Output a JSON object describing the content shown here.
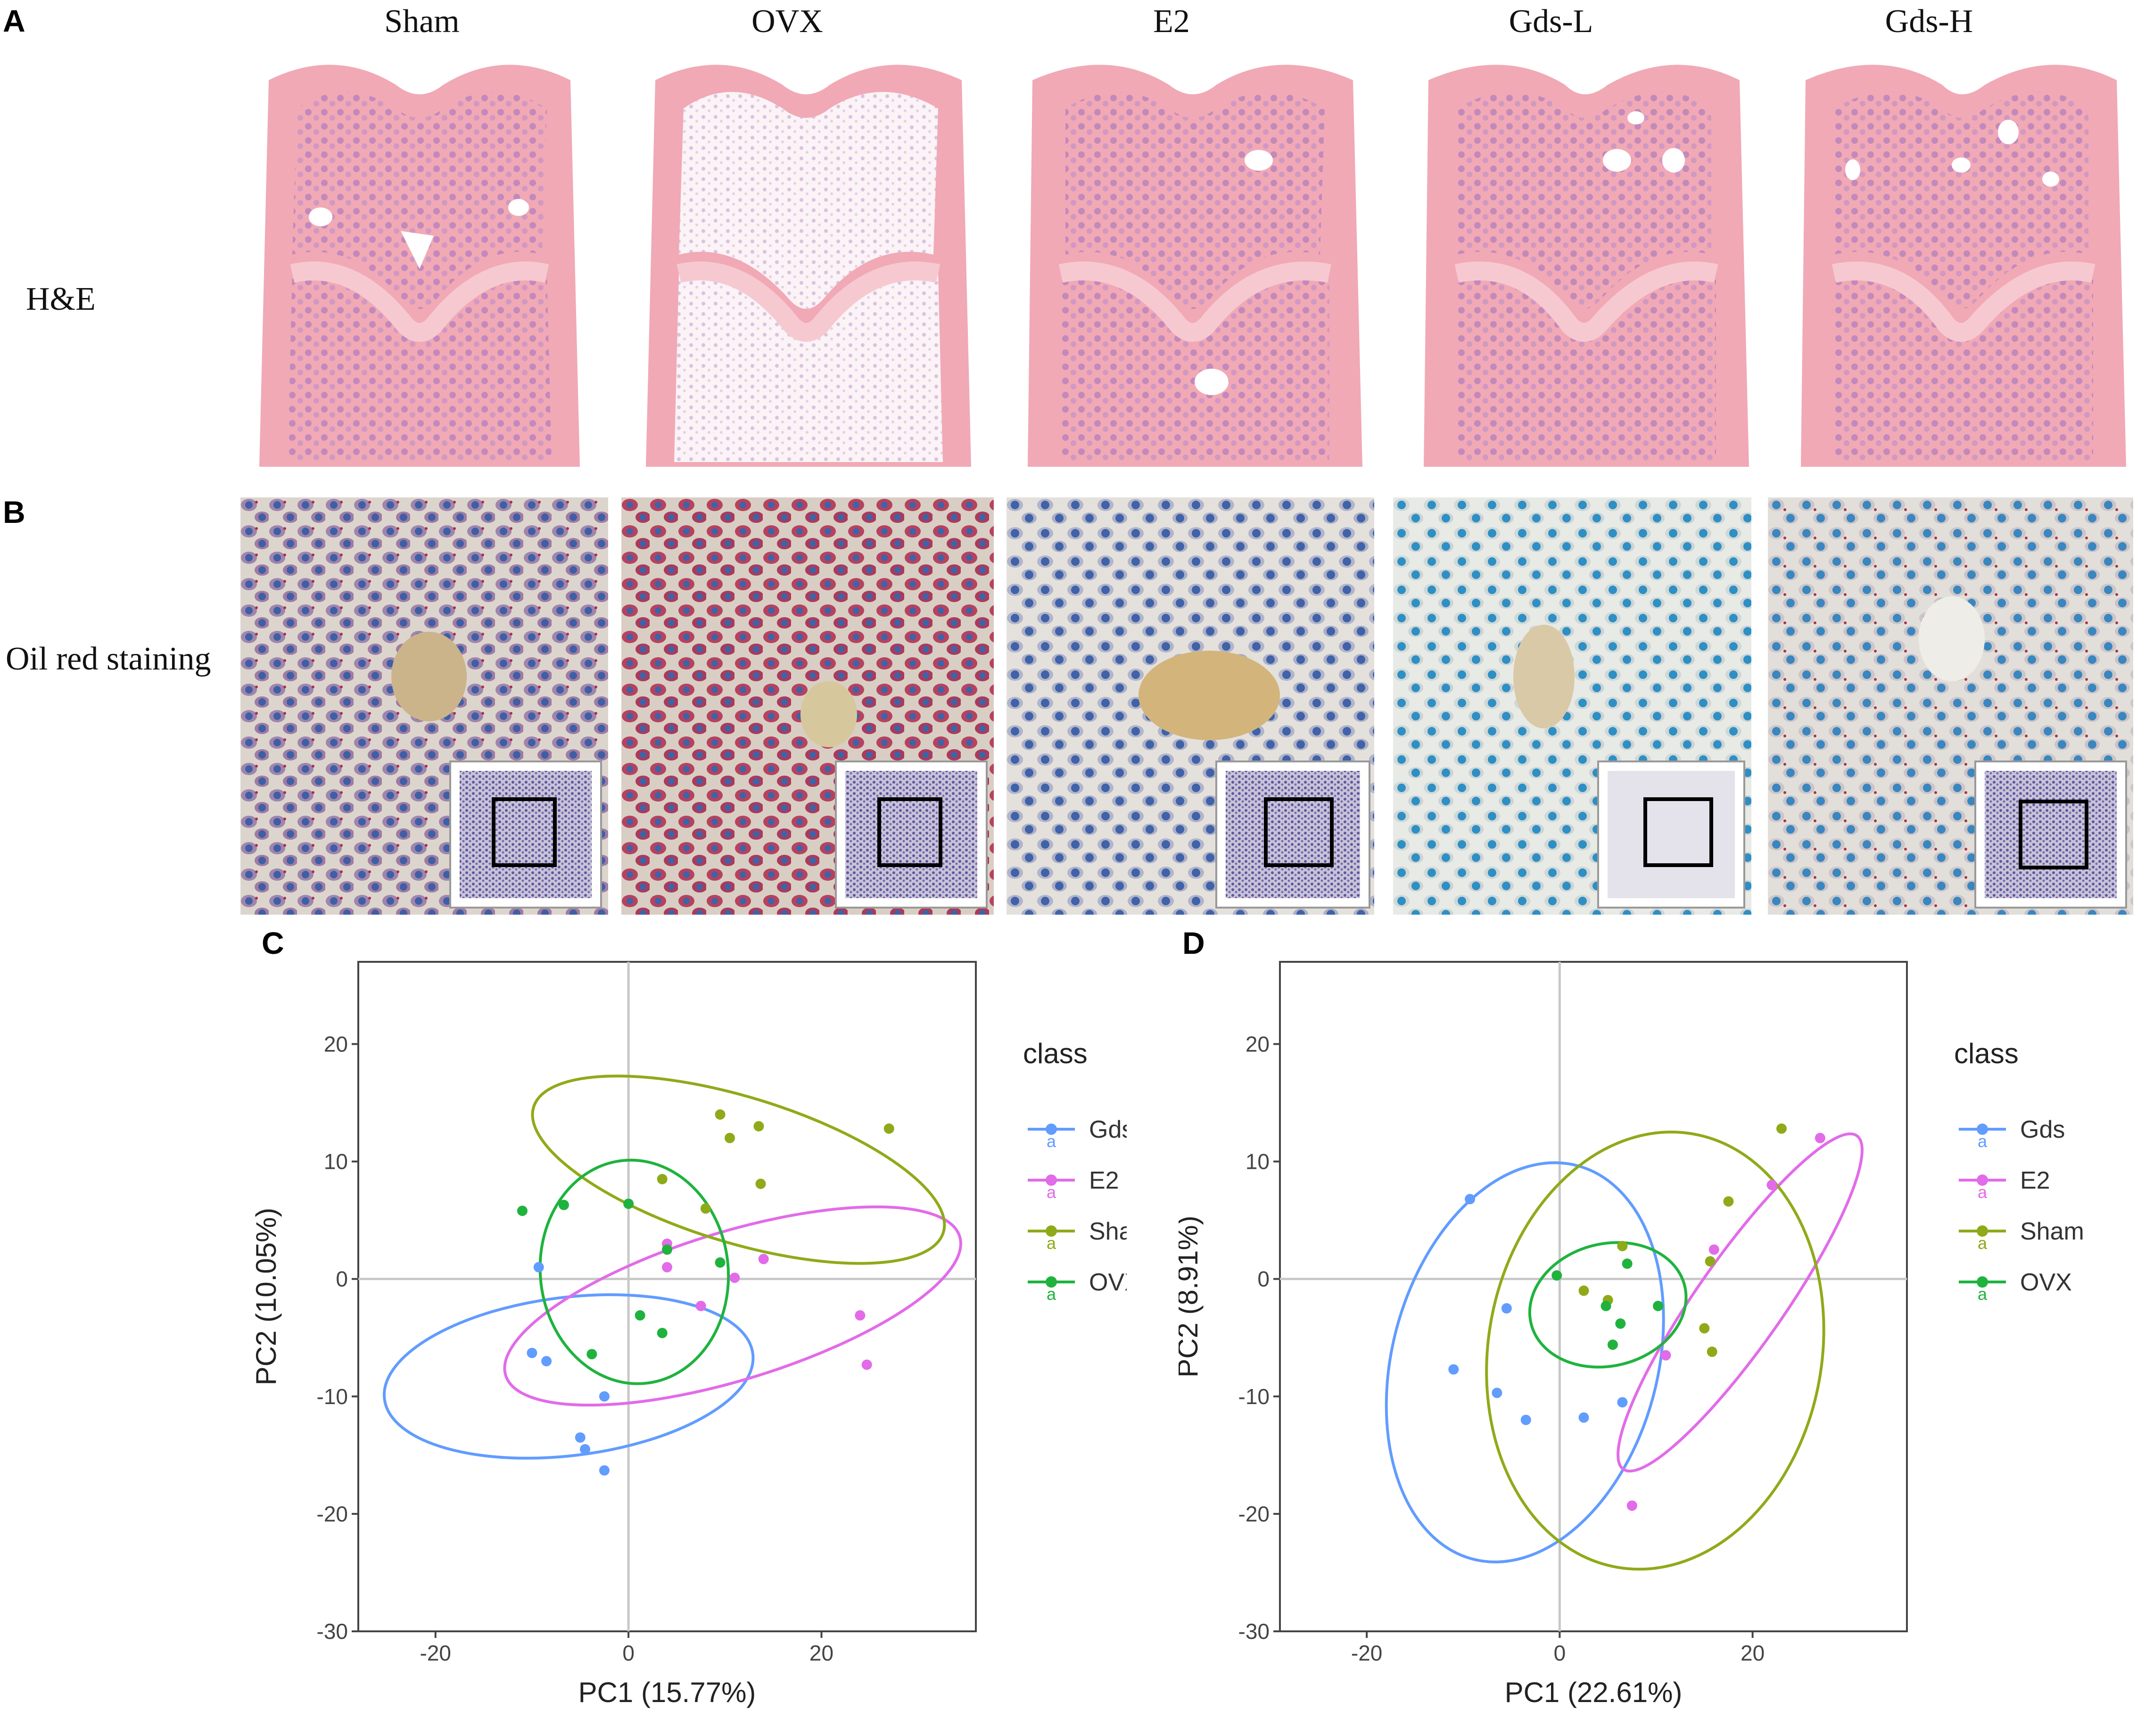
{
  "figure": {
    "panel_labels": [
      "A",
      "B",
      "C",
      "D"
    ],
    "groups": [
      "Sham",
      "OVX",
      "E2",
      "Gds-L",
      "Gds-H"
    ],
    "row_labels": {
      "he": "H&E",
      "oil": "Oil red staining"
    }
  },
  "legend": {
    "title": "class",
    "glyph": "a"
  },
  "colors": {
    "Gds": "#619CFF",
    "E2": "#E26BE9",
    "Sham": "#8FAA19",
    "OVX": "#1FB33E",
    "he_pink": "#F2AEB8",
    "he_purple": "#A87CC0",
    "oil_red": "#B01E3F",
    "oil_blue": "#4F78B8"
  },
  "chart_data": [
    {
      "type": "scatter",
      "panel": "C",
      "xlabel": "PC1 (15.77%)",
      "ylabel": "PC2 (10.05%)",
      "xlim": [
        -28,
        36
      ],
      "ylim": [
        -30,
        27
      ],
      "xticks": [
        -20,
        0,
        20
      ],
      "yticks": [
        20,
        10,
        0,
        -10,
        -20,
        -30
      ],
      "legend_title": "class",
      "legend_position": "right",
      "series": [
        {
          "name": "Gds",
          "points": [
            [
              -10,
              -6.3
            ],
            [
              -8.5,
              -7
            ],
            [
              -9.3,
              1
            ],
            [
              -5,
              -13.5
            ],
            [
              -4.5,
              -14.5
            ],
            [
              -2.5,
              -16.3
            ],
            [
              -2.5,
              -10
            ]
          ],
          "ellipse": {
            "cx": -6.2,
            "cy": -8.3,
            "rx": 8.2,
            "ry": 15.8,
            "angle": 83
          }
        },
        {
          "name": "E2",
          "points": [
            [
              4,
              3
            ],
            [
              4,
              1
            ],
            [
              7.5,
              -2.3
            ],
            [
              11,
              0.1
            ],
            [
              14,
              1.7
            ],
            [
              24,
              -3.1
            ],
            [
              24.7,
              -7.3
            ]
          ],
          "ellipse": {
            "cx": 10.8,
            "cy": -2.3,
            "rx": 24.6,
            "ry": 6.3,
            "angle": -17
          }
        },
        {
          "name": "Sham",
          "points": [
            [
              9.5,
              14
            ],
            [
              10.5,
              12
            ],
            [
              13.5,
              13
            ],
            [
              13.7,
              8.1
            ],
            [
              27,
              12.8
            ],
            [
              3.5,
              8.5
            ],
            [
              8,
              6
            ]
          ],
          "ellipse": {
            "cx": 11.4,
            "cy": 9.3,
            "rx": 22.2,
            "ry": 6.2,
            "angle": 17
          }
        },
        {
          "name": "OVX",
          "points": [
            [
              -11,
              5.8
            ],
            [
              -6.7,
              6.3
            ],
            [
              0,
              6.4
            ],
            [
              -3.8,
              -6.4
            ],
            [
              1.2,
              -3.1
            ],
            [
              3.5,
              -4.6
            ],
            [
              9.5,
              1.4
            ],
            [
              4,
              2.5
            ]
          ],
          "ellipse": {
            "cx": 0.6,
            "cy": 0.6,
            "rx": 11.6,
            "ry": 8,
            "angle": -96
          }
        }
      ]
    },
    {
      "type": "scatter",
      "panel": "D",
      "xlabel": "PC1 (22.61%)",
      "ylabel": "PC2 (8.91%)",
      "xlim": [
        -29,
        36
      ],
      "ylim": [
        -30,
        27
      ],
      "xticks": [
        -20,
        0,
        20
      ],
      "yticks": [
        20,
        10,
        0,
        -10,
        -20,
        -30
      ],
      "legend_title": "class",
      "legend_position": "right",
      "series": [
        {
          "name": "Gds",
          "points": [
            [
              -9.3,
              6.8
            ],
            [
              -11,
              -7.7
            ],
            [
              -5.5,
              -2.5
            ],
            [
              -6.5,
              -9.7
            ],
            [
              -3.5,
              -12
            ],
            [
              2.5,
              -11.8
            ],
            [
              6.5,
              -10.5
            ]
          ],
          "ellipse": {
            "cx": -3.6,
            "cy": -7.1,
            "rx": 21.1,
            "ry": 11.3,
            "angle": -75
          }
        },
        {
          "name": "E2",
          "points": [
            [
              7.5,
              -19.3
            ],
            [
              11,
              -6.5
            ],
            [
              16,
              2.5
            ],
            [
              22,
              8
            ],
            [
              27,
              12
            ]
          ],
          "ellipse": {
            "cx": 18.7,
            "cy": -2,
            "rx": 21.1,
            "ry": 3.7,
            "angle": -55
          }
        },
        {
          "name": "Sham",
          "points": [
            [
              2.5,
              -1
            ],
            [
              5,
              -1.8
            ],
            [
              6.5,
              2.8
            ],
            [
              15,
              -4.2
            ],
            [
              15.8,
              -6.2
            ],
            [
              17.5,
              6.6
            ],
            [
              23,
              12.8
            ],
            [
              15.6,
              1.5
            ]
          ],
          "ellipse": {
            "cx": 9.9,
            "cy": -6.1,
            "rx": 22.8,
            "ry": 14.2,
            "angle": -80
          }
        },
        {
          "name": "OVX",
          "points": [
            [
              -0.3,
              0.3
            ],
            [
              4.8,
              -2.3
            ],
            [
              5.5,
              -5.6
            ],
            [
              6.3,
              -3.8
            ],
            [
              7,
              1.3
            ],
            [
              10.2,
              -2.3
            ]
          ],
          "ellipse": {
            "cx": 5,
            "cy": -2.2,
            "rx": 8.2,
            "ry": 5.2,
            "angle": -14
          }
        }
      ]
    }
  ]
}
